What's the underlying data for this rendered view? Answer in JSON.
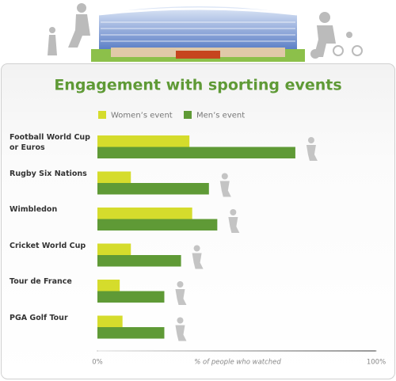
{
  "chart_data": {
    "type": "bar",
    "orientation": "horizontal",
    "title": "Engagement with sporting events",
    "categories": [
      "Football World Cup or Euros",
      "Rugby Six Nations",
      "Wimbledon",
      "Cricket World Cup",
      "Tour de France",
      "PGA Golf Tour"
    ],
    "series": [
      {
        "name": "Women’s event",
        "color": "#d5dc2c",
        "values": [
          33,
          12,
          34,
          12,
          8,
          9
        ]
      },
      {
        "name": "Men’s event",
        "color": "#5f9a36",
        "values": [
          71,
          40,
          43,
          30,
          24,
          24
        ]
      }
    ],
    "xlabel": "% of people who watched",
    "xlim": [
      0,
      100
    ],
    "xticks": [
      {
        "value": 0,
        "label": "0%"
      },
      {
        "value": 100,
        "label": "100%"
      }
    ]
  }
}
